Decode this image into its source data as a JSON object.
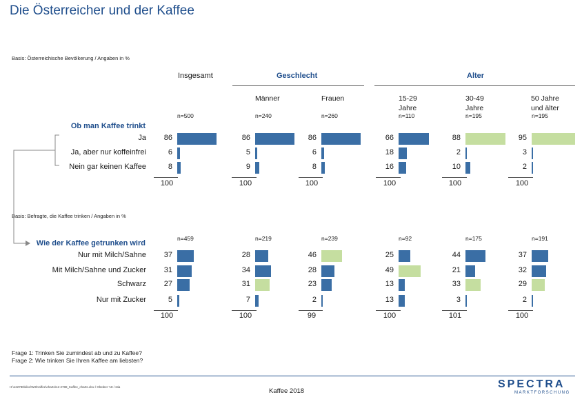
{
  "title": "Die Österreicher und der Kaffee",
  "colors": {
    "blue": "#3a6ea5",
    "green": "#c5dea0",
    "title_blue": "#1f4e8c"
  },
  "headers": {
    "insgesamt": "Insgesamt",
    "geschlecht": "Geschlecht",
    "alter": "Alter",
    "maenner": "Männer",
    "frauen": "Frauen",
    "age1_line1": "15-29",
    "age1_line2": "Jahre",
    "age2_line1": "30-49",
    "age2_line2": "Jahre",
    "age3_line1": "50 Jahre",
    "age3_line2": "und älter"
  },
  "footer": {
    "frage1": "Frage 1: Trinken Sie zumindest ab und zu Kaffee?",
    "frage2": "Frage 2: Wie trinken Sie Ihren Kaffee am liebsten?",
    "path": "H:\\122788\\disc\\W3\\Kaffee\\charts\\12-2788_Kaffee_charts.xlsx / Oktober '18 / stia",
    "center": "Kaffee 2018",
    "logo_main": "SPECTRA",
    "logo_sub": "MARKTFORSCHUNG"
  },
  "chart_data": [
    {
      "type": "bar",
      "basis": "Basis: Österreichische Bevölkerung / Angaben in %",
      "section_title": "Ob man Kaffee trinkt",
      "columns": [
        "Insgesamt",
        "Männer",
        "Frauen",
        "15-29 Jahre",
        "30-49 Jahre",
        "50 Jahre und älter"
      ],
      "n": [
        "n=500",
        "n=240",
        "n=260",
        "n=110",
        "n=195",
        "n=195"
      ],
      "categories": [
        "Ja",
        "Ja, aber nur koffeinfrei",
        "Nein gar keinen Kaffee"
      ],
      "values": [
        [
          86,
          86,
          86,
          66,
          88,
          95
        ],
        [
          6,
          5,
          6,
          18,
          2,
          3
        ],
        [
          8,
          9,
          8,
          16,
          10,
          2
        ]
      ],
      "highlight": [
        [
          false,
          false,
          false,
          false,
          true,
          true
        ],
        [
          false,
          false,
          false,
          false,
          false,
          false
        ],
        [
          false,
          false,
          false,
          false,
          false,
          false
        ]
      ],
      "totals": [
        "100",
        "100",
        "100",
        "100",
        "100",
        "100"
      ]
    },
    {
      "type": "bar",
      "basis": "Basis: Befragte, die Kaffee trinken / Angaben in %",
      "section_title": "Wie der Kaffee getrunken wird",
      "columns": [
        "Insgesamt",
        "Männer",
        "Frauen",
        "15-29 Jahre",
        "30-49 Jahre",
        "50 Jahre und älter"
      ],
      "n": [
        "n=459",
        "n=219",
        "n=239",
        "n=92",
        "n=175",
        "n=191"
      ],
      "categories": [
        "Nur mit Milch/Sahne",
        "Mit Milch/Sahne und Zucker",
        "Schwarz",
        "Nur mit Zucker"
      ],
      "values": [
        [
          37,
          28,
          46,
          25,
          44,
          37
        ],
        [
          31,
          34,
          28,
          49,
          21,
          32
        ],
        [
          27,
          31,
          23,
          13,
          33,
          29
        ],
        [
          5,
          7,
          2,
          13,
          3,
          2
        ]
      ],
      "highlight": [
        [
          false,
          false,
          true,
          false,
          false,
          false
        ],
        [
          false,
          false,
          false,
          true,
          false,
          false
        ],
        [
          false,
          true,
          false,
          false,
          true,
          true
        ],
        [
          false,
          false,
          false,
          false,
          false,
          false
        ]
      ],
      "totals": [
        "100",
        "100",
        "99",
        "100",
        "101",
        "100"
      ]
    }
  ]
}
